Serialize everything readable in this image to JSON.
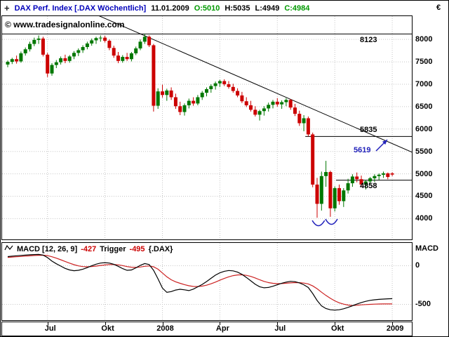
{
  "header": {
    "crosshair_icon": "+",
    "title": "DAX Perf. Index [.DAX Wöchentlich]",
    "date": "11.01.2009",
    "open": "O:5010",
    "high": "H:5035",
    "low": "L:4949",
    "close": "C:4984",
    "currency": "€"
  },
  "watermark": "© www.tradesignalonline.com",
  "price_axis": {
    "tick_labels": [
      "8000",
      "7500",
      "7000",
      "6500",
      "6000",
      "5500",
      "5000",
      "4500",
      "4000"
    ]
  },
  "annotations": {
    "level_8123": "8123",
    "level_5835": "5835",
    "level_5619": "5619",
    "level_4858": "4858"
  },
  "macd_header": {
    "name": "MACD [12, 26, 9]",
    "value": "-427",
    "trigger_label": "Trigger",
    "trigger_value": "-495",
    "symbol": "{.DAX}"
  },
  "macd_axis": {
    "title": "MACD",
    "tick_labels": [
      "0",
      "-500"
    ]
  },
  "x_axis": {
    "labels": [
      "Jul",
      "Okt",
      "2008",
      "Apr",
      "Jul",
      "Okt",
      "2009"
    ]
  },
  "colors": {
    "title_blue": "#0000bb",
    "value_green": "#009900",
    "up_green": "#007700",
    "down_red": "#cc0000",
    "annotation_blue": "#2222bb",
    "grid": "#c6c6c6"
  },
  "chart_data": [
    {
      "type": "candlestick",
      "title": "DAX Perf. Index [.DAX] Wöchentlich",
      "last_bar": {
        "date": "11.01.2009",
        "open": 5010,
        "high": 5035,
        "low": 4949,
        "close": 4984
      },
      "x_start": 8,
      "x_step": 6.3,
      "tick_weeks": [
        9,
        22,
        35,
        48,
        61,
        74,
        87
      ],
      "tick_labels": [
        "Jul",
        "Okt",
        "2008",
        "Apr",
        "Jul",
        "Okt",
        "2009"
      ],
      "ylim": [
        3536,
        8520
      ],
      "yticks": [
        8000,
        7500,
        7000,
        6500,
        6000,
        5500,
        5000,
        4500,
        4000
      ],
      "ohlc": [
        [
          7440,
          7530,
          7380,
          7500
        ],
        [
          7500,
          7590,
          7450,
          7560
        ],
        [
          7560,
          7640,
          7460,
          7510
        ],
        [
          7510,
          7730,
          7480,
          7690
        ],
        [
          7690,
          7820,
          7640,
          7780
        ],
        [
          7780,
          7950,
          7730,
          7900
        ],
        [
          7900,
          8040,
          7850,
          7990
        ],
        [
          7990,
          8090,
          7900,
          8020
        ],
        [
          8020,
          8060,
          7620,
          7660
        ],
        [
          7660,
          7700,
          7160,
          7240
        ],
        [
          7240,
          7470,
          7190,
          7430
        ],
        [
          7430,
          7540,
          7360,
          7490
        ],
        [
          7490,
          7620,
          7440,
          7580
        ],
        [
          7580,
          7660,
          7470,
          7520
        ],
        [
          7520,
          7650,
          7480,
          7620
        ],
        [
          7620,
          7740,
          7560,
          7700
        ],
        [
          7700,
          7800,
          7630,
          7760
        ],
        [
          7760,
          7870,
          7700,
          7830
        ],
        [
          7830,
          7950,
          7780,
          7910
        ],
        [
          7910,
          8020,
          7860,
          7980
        ],
        [
          7980,
          8060,
          7900,
          8030
        ],
        [
          8030,
          8090,
          7950,
          8040
        ],
        [
          8040,
          8080,
          7930,
          7970
        ],
        [
          7970,
          8000,
          7760,
          7810
        ],
        [
          7810,
          7860,
          7590,
          7640
        ],
        [
          7640,
          7720,
          7470,
          7520
        ],
        [
          7520,
          7650,
          7480,
          7610
        ],
        [
          7610,
          7700,
          7520,
          7560
        ],
        [
          7560,
          7720,
          7510,
          7690
        ],
        [
          7690,
          7840,
          7650,
          7800
        ],
        [
          7800,
          8000,
          7760,
          7950
        ],
        [
          7950,
          8123,
          7900,
          8060
        ],
        [
          8060,
          8090,
          7830,
          7870
        ],
        [
          7870,
          7900,
          6390,
          6520
        ],
        [
          6520,
          6910,
          6450,
          6840
        ],
        [
          6840,
          6990,
          6700,
          6760
        ],
        [
          6760,
          6900,
          6630,
          6860
        ],
        [
          6860,
          6930,
          6650,
          6710
        ],
        [
          6710,
          6790,
          6450,
          6510
        ],
        [
          6510,
          6610,
          6310,
          6380
        ],
        [
          6380,
          6570,
          6300,
          6530
        ],
        [
          6530,
          6680,
          6460,
          6630
        ],
        [
          6630,
          6710,
          6520,
          6570
        ],
        [
          6570,
          6760,
          6530,
          6710
        ],
        [
          6710,
          6850,
          6650,
          6810
        ],
        [
          6810,
          6930,
          6730,
          6890
        ],
        [
          6890,
          7000,
          6810,
          6960
        ],
        [
          6960,
          7060,
          6880,
          7020
        ],
        [
          7020,
          7100,
          6940,
          7070
        ],
        [
          7070,
          7110,
          6960,
          7000
        ],
        [
          7000,
          7070,
          6900,
          6940
        ],
        [
          6940,
          7010,
          6810,
          6850
        ],
        [
          6850,
          6910,
          6710,
          6750
        ],
        [
          6750,
          6830,
          6580,
          6620
        ],
        [
          6620,
          6710,
          6490,
          6530
        ],
        [
          6530,
          6630,
          6390,
          6430
        ],
        [
          6430,
          6510,
          6280,
          6320
        ],
        [
          6320,
          6430,
          6190,
          6400
        ],
        [
          6400,
          6510,
          6300,
          6460
        ],
        [
          6460,
          6590,
          6390,
          6540
        ],
        [
          6540,
          6650,
          6460,
          6610
        ],
        [
          6610,
          6690,
          6500,
          6550
        ],
        [
          6550,
          6640,
          6450,
          6600
        ],
        [
          6600,
          6690,
          6510,
          6650
        ],
        [
          6650,
          6670,
          6430,
          6480
        ],
        [
          6480,
          6560,
          6290,
          6340
        ],
        [
          6340,
          6410,
          6070,
          6130
        ],
        [
          6130,
          6310,
          5950,
          6240
        ],
        [
          6240,
          6280,
          5835,
          5880
        ],
        [
          5880,
          5920,
          4700,
          4760
        ],
        [
          4760,
          4910,
          4020,
          4330
        ],
        [
          4330,
          5050,
          4180,
          4950
        ],
        [
          4950,
          5290,
          4710,
          5040
        ],
        [
          5040,
          5070,
          4040,
          4230
        ],
        [
          4230,
          4720,
          4160,
          4680
        ],
        [
          4680,
          4760,
          4310,
          4390
        ],
        [
          4390,
          4680,
          4260,
          4630
        ],
        [
          4630,
          4890,
          4560,
          4790
        ],
        [
          4790,
          4990,
          4710,
          4940
        ],
        [
          4940,
          5030,
          4810,
          4880
        ],
        [
          4880,
          4960,
          4710,
          4760
        ],
        [
          4760,
          4860,
          4650,
          4830
        ],
        [
          4830,
          4930,
          4770,
          4900
        ],
        [
          4900,
          4990,
          4820,
          4950
        ],
        [
          4950,
          5010,
          4860,
          4980
        ],
        [
          4980,
          5050,
          4910,
          5010
        ],
        [
          5010,
          5030,
          4880,
          4930
        ],
        [
          5010,
          5035,
          4949,
          4984
        ]
      ],
      "hlines": [
        {
          "price": 8123,
          "from_frac": 0
        },
        {
          "price": 5835,
          "from_frac": 0.74
        },
        {
          "price": 4858,
          "from_frac": 0.815
        }
      ],
      "trendline": {
        "p_left": 9470,
        "p_right": 5484
      },
      "arcs": [
        {
          "week_from": 68.9,
          "week_to": 71.7,
          "price": 3960
        },
        {
          "week_from": 71.9,
          "week_to": 74.6,
          "price": 3990
        }
      ],
      "arrow": {
        "x1_frac": 0.9127,
        "p1": 5511,
        "x2_frac": 0.9401,
        "p2": 5762,
        "label": 5619
      }
    },
    {
      "type": "line",
      "title": "MACD [12, 26, 9]",
      "current": {
        "macd": -427,
        "trigger": -495
      },
      "ylim": [
        -705,
        295
      ],
      "yticks": [
        0,
        -500
      ],
      "series": [
        {
          "name": "MACD",
          "color": "#000000",
          "values": [
            118,
            124,
            129,
            133,
            137,
            141,
            144,
            146,
            138,
            105,
            60,
            25,
            -5,
            -35,
            -55,
            -65,
            -60,
            -45,
            -25,
            0,
            20,
            34,
            40,
            34,
            18,
            -8,
            -38,
            -60,
            -55,
            -28,
            5,
            28,
            15,
            -60,
            -170,
            -290,
            -345,
            -335,
            -315,
            -305,
            -312,
            -322,
            -303,
            -273,
            -242,
            -205,
            -163,
            -122,
            -92,
            -72,
            -62,
            -67,
            -83,
            -112,
            -152,
            -196,
            -240,
            -272,
            -286,
            -281,
            -266,
            -247,
            -227,
            -212,
            -202,
            -207,
            -222,
            -247,
            -282,
            -360,
            -450,
            -520,
            -555,
            -570,
            -575,
            -570,
            -558,
            -540,
            -519,
            -497,
            -477,
            -461,
            -449,
            -441,
            -436,
            -432,
            -429,
            -427
          ]
        },
        {
          "name": "Trigger",
          "color": "#cc2222",
          "values": [
            108,
            112,
            116,
            120,
            124,
            128,
            132,
            135,
            136,
            130,
            116,
            98,
            77,
            55,
            33,
            13,
            -2,
            -11,
            -14,
            -11,
            -5,
            3,
            10,
            15,
            16,
            11,
            1,
            -11,
            -20,
            -22,
            -17,
            -8,
            -3,
            -14,
            -45,
            -94,
            -144,
            -182,
            -209,
            -228,
            -245,
            -260,
            -269,
            -270,
            -264,
            -252,
            -234,
            -212,
            -188,
            -165,
            -144,
            -129,
            -120,
            -118,
            -125,
            -139,
            -159,
            -182,
            -203,
            -219,
            -228,
            -232,
            -231,
            -227,
            -222,
            -219,
            -220,
            -225,
            -236,
            -261,
            -299,
            -343,
            -385,
            -422,
            -455,
            -480,
            -498,
            -510,
            -516,
            -512,
            -507,
            -503,
            -500,
            -498,
            -496,
            -495,
            -495,
            -495
          ]
        }
      ]
    }
  ]
}
